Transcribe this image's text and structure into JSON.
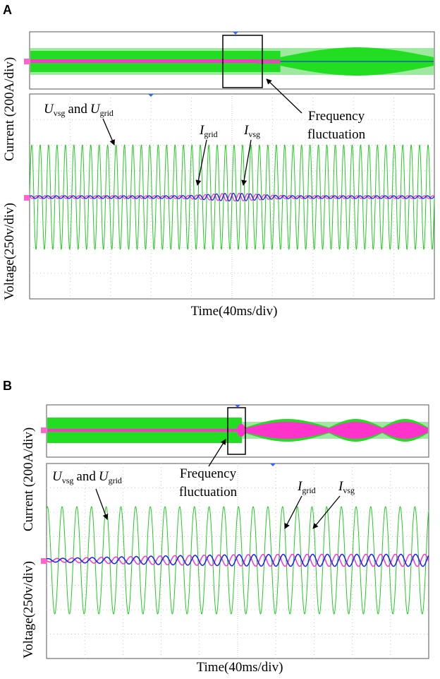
{
  "figure": {
    "colors": {
      "voltage": "#22cc22",
      "voltage_band": "#22dd22",
      "voltage_band_light": "#9fe89f",
      "i_grid": "#1a1aff",
      "i_vsg": "#ff33cc",
      "grid": "#c8c8c8",
      "frame": "#555555",
      "marker_left": "#ff66cc",
      "marker_top": "#3366ff"
    }
  },
  "chart_data": [
    {
      "type": "line",
      "panel": "A",
      "title": "",
      "xlabel": "Time(40ms/div)",
      "ylabel_current": "Current (200A/div)",
      "ylabel_voltage": "Voltage(250v/div)",
      "x_divisions": 10,
      "y_divisions": 8,
      "xlim": [
        0,
        400
      ],
      "ylim_voltage": [
        -1000,
        1000
      ],
      "annotations": {
        "u_label": {
          "u": "U",
          "vsg": "vsg",
          "and": "and",
          "grid": "grid"
        },
        "i_grid_label": {
          "i": "I",
          "sub": "grid"
        },
        "i_vsg_label": {
          "i": "I",
          "sub": "vsg"
        },
        "frequency_line1": "Frequency",
        "frequency_line2": "fluctuation"
      },
      "series": [
        {
          "name": "U_vsg and U_grid",
          "kind": "sinusoid",
          "amplitude_v": 510,
          "cycles_in_window": 48
        },
        {
          "name": "I_grid",
          "kind": "sinusoid",
          "amplitude_a": 20,
          "peak_amplitude_a": 55,
          "disturbance_time_ms": 190
        },
        {
          "name": "I_vsg",
          "kind": "sinusoid",
          "amplitude_a": 20,
          "peak_amplitude_a": 55,
          "disturbance_time_ms": 190
        }
      ],
      "overview": {
        "zoom_window": [
          0.52,
          0.62
        ],
        "band_change_at": 0.62
      }
    },
    {
      "type": "line",
      "panel": "B",
      "title": "",
      "xlabel": "Time(40ms/div)",
      "ylabel_current": "Current (200A/div)",
      "ylabel_voltage": "Voltage(250v/div)",
      "x_divisions": 10,
      "y_divisions": 8,
      "xlim": [
        0,
        400
      ],
      "ylim_voltage": [
        -1000,
        1000
      ],
      "annotations": {
        "u_label": {
          "u": "U",
          "vsg": "vsg",
          "and": "and",
          "grid": "grid"
        },
        "i_grid_label": {
          "i": "I",
          "sub": "grid"
        },
        "i_vsg_label": {
          "i": "I",
          "sub": "vsg"
        },
        "frequency_line1": "Frequency",
        "frequency_line2": "fluctuation"
      },
      "series": [
        {
          "name": "U_vsg and U_grid",
          "kind": "sinusoid",
          "amplitude_v": 550,
          "cycles_in_window": 26
        },
        {
          "name": "I_grid",
          "kind": "sinusoid",
          "amplitude_a": 30,
          "peak_amplitude_a": 110,
          "disturbance_time_ms": 0
        },
        {
          "name": "I_vsg",
          "kind": "sinusoid",
          "amplitude_a": 30,
          "peak_amplitude_a": 110,
          "disturbance_time_ms": 0
        }
      ],
      "overview": {
        "zoom_window": [
          0.48,
          0.52
        ],
        "band_change_at": 0.5
      }
    }
  ]
}
